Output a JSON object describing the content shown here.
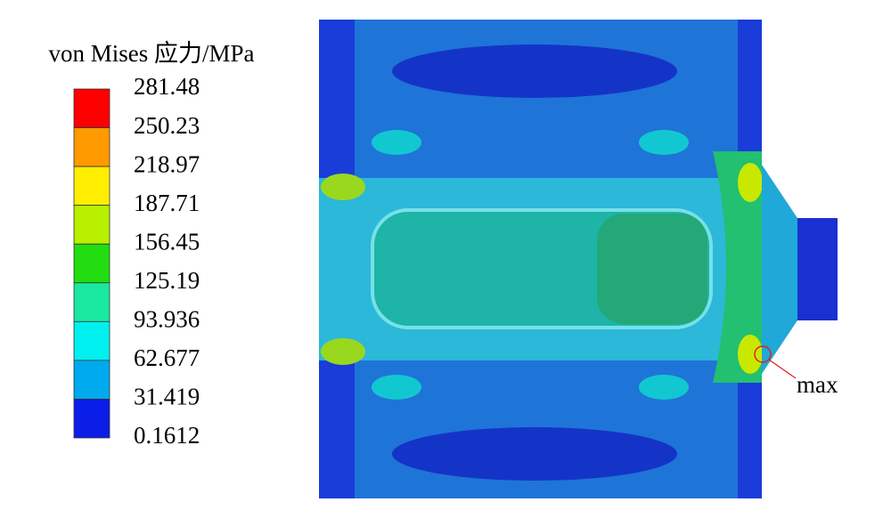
{
  "legend": {
    "title": "von Mises 应力/MPa",
    "labels": [
      "281.48",
      "250.23",
      "218.97",
      "187.71",
      "156.45",
      "125.19",
      "93.936",
      "62.677",
      "31.419",
      "0.1612"
    ],
    "band_colors": [
      "#ff0000",
      "#ff9a00",
      "#ffee00",
      "#b8f000",
      "#22dd10",
      "#18e8a0",
      "#00f0f0",
      "#00aaee",
      "#0a1ee8"
    ]
  },
  "annotation": {
    "label": "max"
  }
}
